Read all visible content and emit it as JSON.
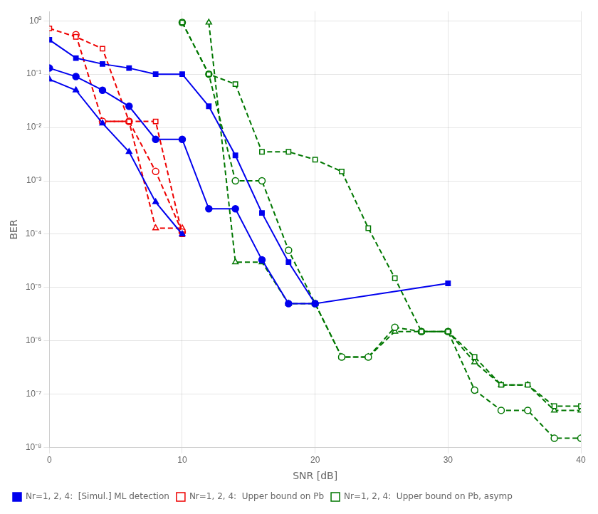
{
  "chart_data": {
    "type": "line",
    "x_label": "SNR [dB]",
    "y_label": "BER",
    "log": "y",
    "grid": true,
    "legend": "lower left",
    "xlim": [
      0,
      40
    ],
    "xticks": [
      0,
      10,
      20,
      30,
      40
    ],
    "ylim": [
      1e-08,
      1.5
    ],
    "yticks": [
      {
        "value": 1e-08,
        "label": "10⁻⁸"
      },
      {
        "value": 1e-07,
        "label": "10⁻⁷"
      },
      {
        "value": 1e-06,
        "label": "10⁻⁶"
      },
      {
        "value": 1e-05,
        "label": "10⁻⁵"
      },
      {
        "value": 0.0001,
        "label": "10⁻⁴"
      },
      {
        "value": 0.001,
        "label": "10⁻³"
      },
      {
        "value": 0.01,
        "label": "10⁻²"
      },
      {
        "value": 0.1,
        "label": "10⁻¹"
      },
      {
        "value": 1,
        "label": "10⁰"
      }
    ],
    "series": [
      {
        "name": "Nr=1, 2, 4:  [Simul.] ML detection",
        "color": "#0000EE",
        "line_style": "solid",
        "marker": "square",
        "x": [
          0,
          2,
          4,
          6,
          8,
          10,
          12,
          14,
          16,
          18,
          20,
          30
        ],
        "values": [
          0.44,
          0.2,
          0.155,
          0.13,
          0.1,
          0.1,
          0.025,
          0.003,
          0.00025,
          3e-05,
          5e-06,
          1.2e-05
        ]
      },
      {
        "color": "#0000EE",
        "line_style": "solid",
        "marker": "circle",
        "x": [
          0,
          2,
          4,
          6,
          8,
          10,
          12,
          14,
          16,
          18,
          20
        ],
        "values": [
          0.13,
          0.09,
          0.05,
          0.025,
          0.006,
          0.006,
          0.0003,
          0.0003,
          3.3e-05,
          5e-06,
          5e-06
        ]
      },
      {
        "color": "#0000EE",
        "line_style": "solid",
        "marker": "triangle",
        "x": [
          0,
          2,
          4,
          6,
          8,
          10
        ],
        "values": [
          0.08,
          0.05,
          0.012,
          0.0035,
          0.0004,
          0.0001
        ]
      },
      {
        "name": "Nr=1, 2, 4:  Upper bound on Pb",
        "color": "#EE0000",
        "line_style": "dashed",
        "marker": "square",
        "x": [
          0,
          2,
          4,
          6,
          8,
          10
        ],
        "values": [
          0.72,
          0.5,
          0.3,
          0.013,
          0.013,
          0.0001
        ]
      },
      {
        "color": "#EE0000",
        "line_style": "dashed",
        "marker": "circle",
        "x": [
          2,
          4,
          6,
          8,
          10
        ],
        "values": [
          0.55,
          0.013,
          0.013,
          0.0015,
          0.00011
        ]
      },
      {
        "color": "#EE0000",
        "line_style": "dashed",
        "marker": "triangle",
        "x": [
          4,
          6,
          8,
          10
        ],
        "values": [
          0.013,
          0.013,
          0.00013,
          0.00013
        ]
      },
      {
        "name": "Nr=1, 2, 4:  Upper bound on Pb, asymp",
        "color": "#007700",
        "line_style": "dashed",
        "marker": "square",
        "x": [
          10,
          12,
          14,
          16,
          18,
          20,
          22,
          24,
          26,
          28,
          30,
          32,
          34,
          36,
          38,
          40
        ],
        "values": [
          0.93,
          0.1,
          0.065,
          0.0035,
          0.0035,
          0.0025,
          0.0015,
          0.00013,
          1.5e-05,
          1.5e-06,
          1.5e-06,
          5e-07,
          1.5e-07,
          1.5e-07,
          6e-08,
          6e-08
        ]
      },
      {
        "color": "#007700",
        "line_style": "dashed",
        "marker": "circle",
        "x": [
          10,
          12,
          14,
          16,
          18,
          20,
          22,
          24,
          26,
          28,
          30,
          32,
          34,
          36,
          38,
          40
        ],
        "values": [
          0.93,
          0.1,
          0.001,
          0.001,
          5e-05,
          5e-06,
          5e-07,
          5e-07,
          1.8e-06,
          1.5e-06,
          1.5e-06,
          1.2e-07,
          5e-08,
          5e-08,
          1.5e-08,
          1.5e-08
        ]
      },
      {
        "color": "#007700",
        "line_style": "dashed",
        "marker": "triangle",
        "x": [
          12,
          14,
          16,
          18,
          20,
          22,
          24,
          26,
          28,
          30,
          32,
          34,
          36,
          38,
          40
        ],
        "values": [
          0.93,
          3e-05,
          3e-05,
          5e-06,
          5e-06,
          5e-07,
          5e-07,
          1.5e-06,
          1.5e-06,
          1.5e-06,
          4e-07,
          1.5e-07,
          1.5e-07,
          5e-08,
          5e-08
        ]
      }
    ]
  }
}
